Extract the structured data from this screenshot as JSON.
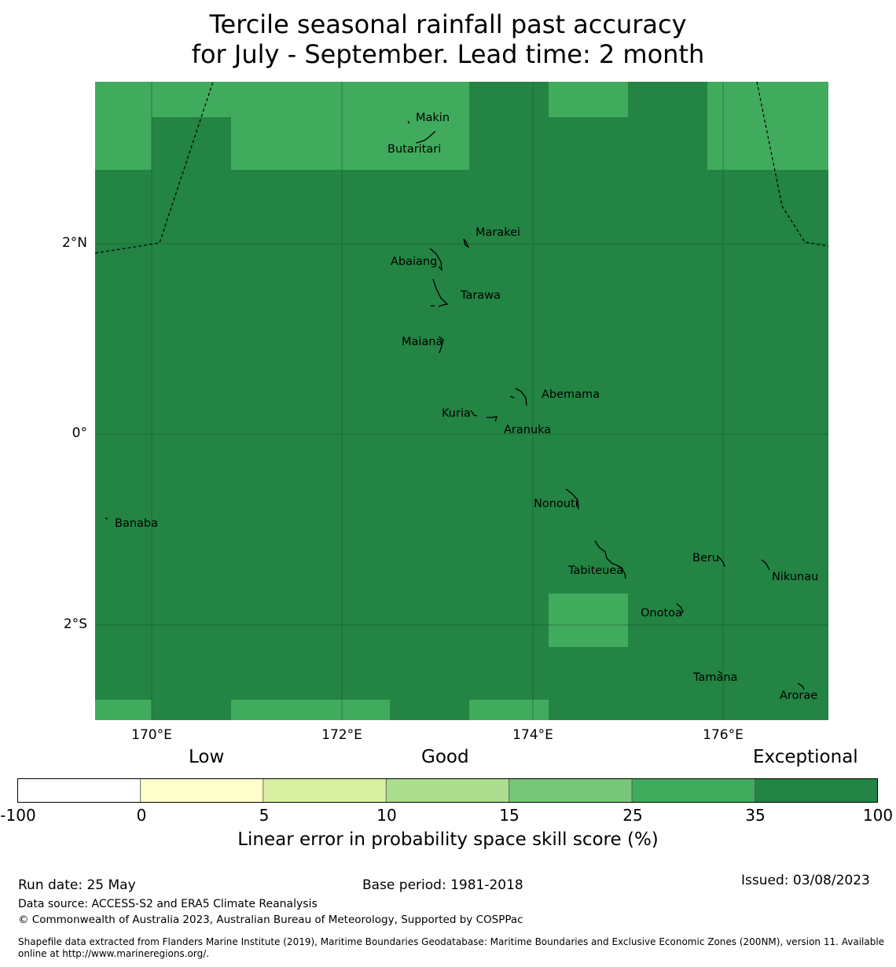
{
  "title": {
    "line1": "Tercile seasonal rainfall past accuracy",
    "line2": "for July - September. Lead time: 2 month"
  },
  "axes": {
    "y_ticks": [
      "2°N",
      "0°",
      "2°S"
    ],
    "x_ticks": [
      "170°E",
      "172°E",
      "174°E",
      "176°E"
    ]
  },
  "islands": [
    {
      "name": "Makin",
      "lon": 173.0,
      "lat": 3.35
    },
    {
      "name": "Butaritari",
      "lon": 172.95,
      "lat": 3.07
    },
    {
      "name": "Marakei",
      "lon": 173.3,
      "lat": 2.0
    },
    {
      "name": "Abaiang",
      "lon": 172.95,
      "lat": 1.83
    },
    {
      "name": "Tarawa",
      "lon": 173.0,
      "lat": 1.4
    },
    {
      "name": "Maiana",
      "lon": 173.0,
      "lat": 0.93
    },
    {
      "name": "Abemama",
      "lon": 173.85,
      "lat": 0.4
    },
    {
      "name": "Kuria",
      "lon": 173.42,
      "lat": 0.23
    },
    {
      "name": "Aranuka",
      "lon": 173.6,
      "lat": 0.16
    },
    {
      "name": "Nonouti",
      "lon": 174.4,
      "lat": -0.65
    },
    {
      "name": "Banaba",
      "lon": 169.53,
      "lat": -0.87
    },
    {
      "name": "Tabiteuea",
      "lon": 174.8,
      "lat": -1.35
    },
    {
      "name": "Beru",
      "lon": 176.0,
      "lat": -1.33
    },
    {
      "name": "Nikunau",
      "lon": 176.45,
      "lat": -1.37
    },
    {
      "name": "Onotoa",
      "lon": 175.55,
      "lat": -1.85
    },
    {
      "name": "Tamana",
      "lon": 175.98,
      "lat": -2.5
    },
    {
      "name": "Arorae",
      "lon": 176.8,
      "lat": -2.65
    }
  ],
  "colorbar": {
    "categories": [
      "Low",
      "Good",
      "Exceptional"
    ],
    "ticks": [
      "-100",
      "0",
      "5",
      "10",
      "15",
      "25",
      "35",
      "100"
    ],
    "colors": [
      "#ffffff",
      "#ffffcc",
      "#d9f0a3",
      "#addd8e",
      "#78c679",
      "#41ab5d",
      "#238443"
    ],
    "label": "Linear error in probability space skill score (%)"
  },
  "footer": {
    "run_date": "Run date: 25 May",
    "base_period": "Base period: 1981-2018",
    "issued": "Issued: 03/08/2023",
    "data_source": "Data source: ACCESS-S2 and ERA5 Climate Reanalysis",
    "copyright": "© Commonwealth of Australia 2023, Australian Bureau of Meteorology, Supported by COSPPac",
    "shapefile": "Shapefile data extracted from Flanders Marine Institute (2019), Maritime Boundaries Geodatabase: Maritime Boundaries and Exclusive Economic Zones (200NM), version 11. Available online at http://www.marineregions.org/."
  }
}
